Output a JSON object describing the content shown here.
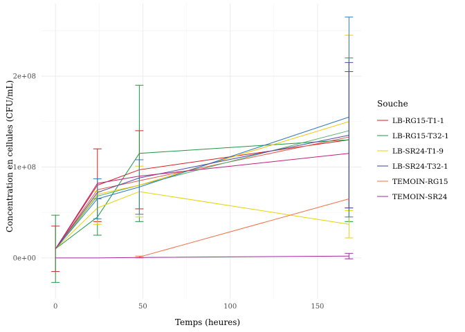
{
  "chart_data": {
    "type": "line",
    "xlabel": "Temps (heures)",
    "ylabel": "Concentration en cellules (CFU/mL)",
    "xlim": [
      -8,
      175
    ],
    "ylim": [
      -45000000,
      280000000
    ],
    "x_ticks": [
      0,
      50,
      100,
      150
    ],
    "x_tick_labels": [
      "0",
      "50",
      "100",
      "150"
    ],
    "y_ticks": [
      0,
      100000000,
      200000000
    ],
    "y_tick_labels": [
      "0e+00",
      "1e+08",
      "2e+08"
    ],
    "grid": true,
    "legend_title": "Souche",
    "legend_position": "right",
    "series": [
      {
        "name": "LB-RG15-T1-1",
        "color": "#d7191c",
        "points": [
          {
            "x": 0,
            "y": 10000000,
            "err": 25000000
          },
          {
            "x": 24,
            "y": 80000000,
            "err": 40000000
          },
          {
            "x": 48,
            "y": 97000000,
            "err": 43000000
          },
          {
            "x": 168,
            "y": 130000000,
            "err": 75000000
          }
        ]
      },
      {
        "name": "LB-RG15-T1-1",
        "color": "#e05b4b",
        "points": [
          {
            "x": 0,
            "y": 10000000,
            "err": 0
          },
          {
            "x": 24,
            "y": 75000000,
            "err": 0
          },
          {
            "x": 48,
            "y": 85000000,
            "err": 0
          },
          {
            "x": 168,
            "y": 133000000,
            "err": 0
          }
        ]
      },
      {
        "name": "LB-RG15-T32-1",
        "color": "#1a9641",
        "points": [
          {
            "x": 0,
            "y": 10000000,
            "err": 37000000
          },
          {
            "x": 24,
            "y": 45000000,
            "err": 20000000
          },
          {
            "x": 48,
            "y": 115000000,
            "err": 75000000
          },
          {
            "x": 168,
            "y": 130000000,
            "err": 90000000
          }
        ]
      },
      {
        "name": "LB-RG15-T32-1",
        "color": "#4daf6a",
        "points": [
          {
            "x": 0,
            "y": 10000000,
            "err": 0
          },
          {
            "x": 24,
            "y": 68000000,
            "err": 0
          },
          {
            "x": 48,
            "y": 80000000,
            "err": 0
          },
          {
            "x": 168,
            "y": 140000000,
            "err": 0
          }
        ]
      },
      {
        "name": "LB-SR24-T1-9",
        "color": "#e6d300",
        "points": [
          {
            "x": 0,
            "y": 10000000,
            "err": 0
          },
          {
            "x": 24,
            "y": 55000000,
            "err": 18000000
          },
          {
            "x": 48,
            "y": 73000000,
            "err": 28000000
          },
          {
            "x": 168,
            "y": 37000000,
            "err": 15000000
          }
        ]
      },
      {
        "name": "LB-SR24-T1-9",
        "color": "#f5c400",
        "points": [
          {
            "x": 0,
            "y": 10000000,
            "err": 0
          },
          {
            "x": 24,
            "y": 70000000,
            "err": 0
          },
          {
            "x": 48,
            "y": 80000000,
            "err": 0
          },
          {
            "x": 168,
            "y": 150000000,
            "err": 95000000
          }
        ]
      },
      {
        "name": "LB-SR24-T32-1",
        "color": "#2c7bb6",
        "points": [
          {
            "x": 0,
            "y": 10000000,
            "err": 0
          },
          {
            "x": 24,
            "y": 65000000,
            "err": 22000000
          },
          {
            "x": 48,
            "y": 78000000,
            "err": 30000000
          },
          {
            "x": 168,
            "y": 155000000,
            "err": 110000000
          }
        ]
      },
      {
        "name": "LB-SR24-T32-1",
        "color": "#4a4aa8",
        "points": [
          {
            "x": 0,
            "y": 10000000,
            "err": 0
          },
          {
            "x": 24,
            "y": 72000000,
            "err": 0
          },
          {
            "x": 48,
            "y": 88000000,
            "err": 0
          },
          {
            "x": 168,
            "y": 135000000,
            "err": 80000000
          }
        ]
      },
      {
        "name": "TEMOIN-RG15",
        "color": "#f46d43",
        "points": [
          {
            "x": 48,
            "y": 1000000,
            "err": 1000000
          },
          {
            "x": 168,
            "y": 65000000,
            "err": 0
          }
        ]
      },
      {
        "name": "TEMOIN-SR24",
        "color": "#9e2a9e",
        "points": [
          {
            "x": 0,
            "y": 0,
            "err": 0
          },
          {
            "x": 24,
            "y": 0,
            "err": 0
          },
          {
            "x": 48,
            "y": 500000,
            "err": 0
          },
          {
            "x": 168,
            "y": 2000000,
            "err": 3000000
          }
        ]
      },
      {
        "name": "TEMOIN-SR24",
        "color": "#c51b7d",
        "points": [
          {
            "x": 0,
            "y": 10000000,
            "err": 0
          },
          {
            "x": 24,
            "y": 82000000,
            "err": 0
          },
          {
            "x": 48,
            "y": 90000000,
            "err": 0
          },
          {
            "x": 168,
            "y": 115000000,
            "err": 0
          }
        ]
      }
    ],
    "legend": [
      {
        "label": "LB-RG15-T1-1",
        "color": "#d7191c"
      },
      {
        "label": "LB-RG15-T32-1",
        "color": "#1a9641"
      },
      {
        "label": "LB-SR24-T1-9",
        "color": "#e6d300"
      },
      {
        "label": "LB-SR24-T32-1",
        "color": "#3a3a9e"
      },
      {
        "label": "TEMOIN-RG15",
        "color": "#f46d43"
      },
      {
        "label": "TEMOIN-SR24",
        "color": "#9e2a9e"
      }
    ]
  }
}
